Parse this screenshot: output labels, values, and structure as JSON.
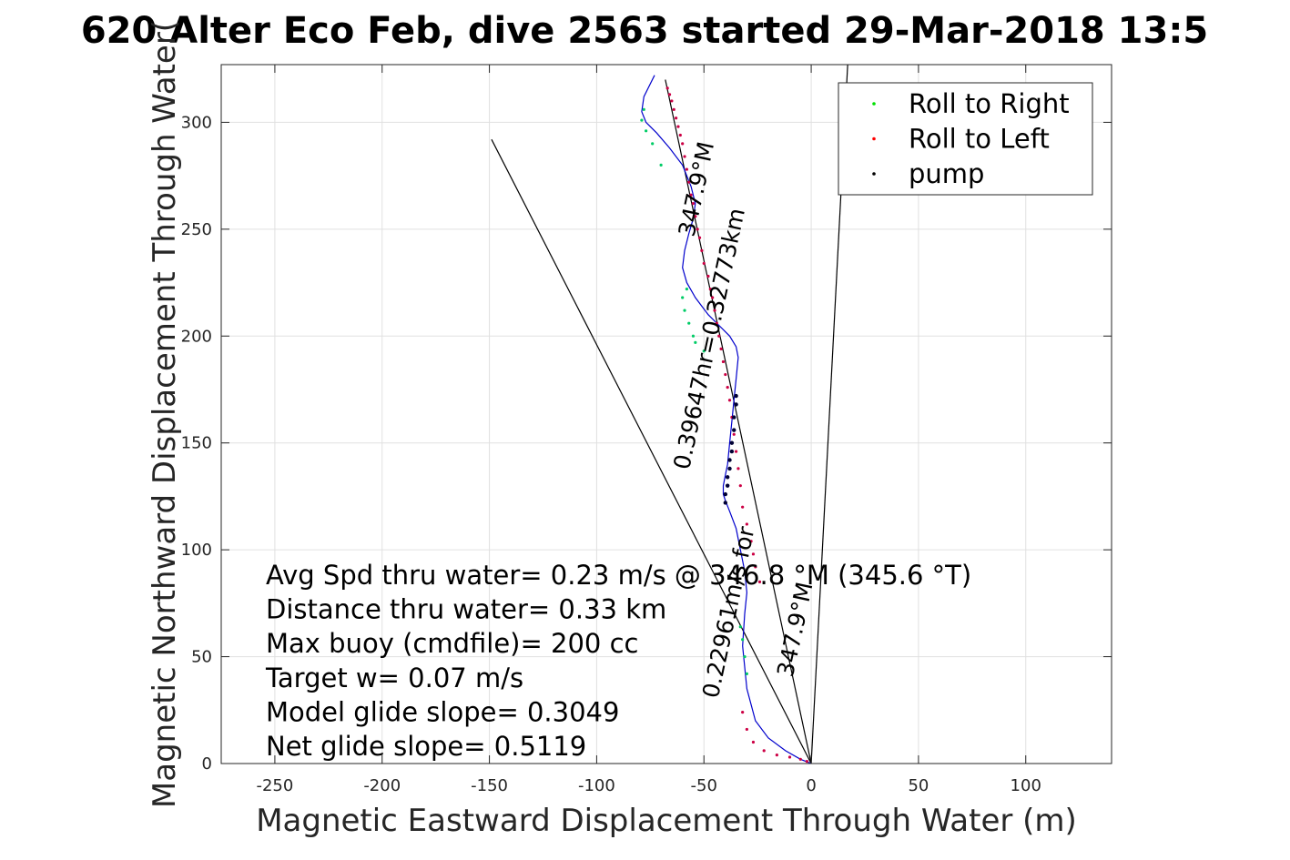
{
  "chart_data": {
    "type": "scatter",
    "title": "620 Alter Eco Feb, dive 2563 started 29-Mar-2018 13:5",
    "xlabel": "Magnetic Eastward Displacement Through Water (m)",
    "ylabel": "Magnetic Northward Displacement Through Water(",
    "xlim": [
      -275,
      140
    ],
    "ylim": [
      0,
      327
    ],
    "xticks": [
      -250,
      -200,
      -150,
      -100,
      -50,
      0,
      50,
      100
    ],
    "yticks": [
      0,
      50,
      100,
      150,
      200,
      250,
      300
    ],
    "grid": true,
    "legend_position": "top-right",
    "legend": [
      {
        "label": "Roll to Right",
        "color": "#00e000"
      },
      {
        "label": "Roll to Left",
        "color": "#ff0000"
      },
      {
        "label": "pump",
        "color": "#000000"
      }
    ],
    "track": {
      "color": "#0000cc",
      "x": [
        0,
        -5,
        -12,
        -20,
        -26,
        -30,
        -32,
        -31,
        -30,
        -31,
        -33,
        -35,
        -38,
        -40,
        -41,
        -41,
        -40,
        -39,
        -38,
        -37,
        -36,
        -35,
        -34,
        -35,
        -38,
        -43,
        -48,
        -54,
        -58,
        -60,
        -59,
        -57,
        -55,
        -54,
        -56,
        -60,
        -66,
        -72,
        -77,
        -79,
        -78,
        -75,
        -73
      ],
      "y": [
        0,
        2,
        6,
        12,
        20,
        35,
        55,
        70,
        80,
        90,
        100,
        110,
        118,
        123,
        126,
        130,
        135,
        140,
        150,
        160,
        170,
        180,
        190,
        195,
        200,
        205,
        210,
        218,
        225,
        232,
        240,
        248,
        255,
        262,
        270,
        280,
        288,
        295,
        300,
        305,
        312,
        318,
        322
      ]
    },
    "roll_right_points": {
      "x": [
        -30,
        -31,
        -32,
        -33,
        -55,
        -57,
        -59,
        -60,
        -58,
        -54,
        -50,
        -70,
        -74,
        -77,
        -79,
        -78
      ],
      "y": [
        42,
        50,
        58,
        64,
        200,
        206,
        212,
        218,
        222,
        197,
        193,
        280,
        290,
        296,
        301,
        306
      ]
    },
    "roll_left_points": {
      "x": [
        -32,
        -30,
        -27,
        -22,
        -16,
        -10,
        -5,
        -2,
        -24,
        -26,
        -27,
        -28,
        -30,
        -32,
        -33,
        -34,
        -35,
        -36,
        -37,
        -38,
        -39,
        -40,
        -41,
        -42,
        -43,
        -44,
        -45,
        -46,
        -47,
        -48,
        -50,
        -51,
        -52,
        -53,
        -54,
        -55,
        -56,
        -57,
        -58,
        -59,
        -60,
        -61,
        -62,
        -63,
        -64,
        -65,
        -66,
        -67
      ],
      "y": [
        24,
        16,
        10,
        6,
        4,
        3,
        2,
        1,
        85,
        92,
        98,
        104,
        112,
        120,
        130,
        138,
        146,
        154,
        162,
        170,
        176,
        182,
        188,
        194,
        200,
        206,
        212,
        218,
        222,
        228,
        234,
        240,
        246,
        250,
        256,
        262,
        266,
        272,
        278,
        284,
        290,
        294,
        298,
        302,
        306,
        310,
        313,
        316
      ]
    },
    "pump_points": {
      "x": [
        -40,
        -40,
        -39,
        -39,
        -38,
        -38,
        -37,
        -37,
        -36,
        -36,
        -35,
        -35
      ],
      "y": [
        122,
        126,
        130,
        134,
        138,
        142,
        146,
        150,
        156,
        162,
        168,
        172
      ]
    },
    "heading_lines": [
      {
        "x": [
          0,
          -68
        ],
        "y": [
          0,
          320
        ],
        "color": "#000000"
      },
      {
        "x": [
          0,
          -149
        ],
        "y": [
          0,
          292
        ],
        "color": "#000000"
      },
      {
        "x": [
          0,
          17
        ],
        "y": [
          0,
          327
        ],
        "color": "#000000"
      }
    ],
    "segment_labels": [
      {
        "text": "0.39647hr=0.32773km",
        "x": -44,
        "y": 198,
        "angle_deg": -77.9
      },
      {
        "text": "347.9°M",
        "x": -50,
        "y": 268,
        "angle_deg": -77.9
      },
      {
        "text": "0.22961m/s for",
        "x": -35,
        "y": 70,
        "angle_deg": -77.9
      },
      {
        "text": "347.9°M",
        "x": -4,
        "y": 62,
        "angle_deg": -77.9
      }
    ],
    "stats": [
      "Avg Spd thru water=  0.23 m/s @ 346.8 °M (345.6 °T)",
      "Distance thru water=  0.33 km",
      "Max buoy (cmdfile)= 200 cc",
      "Target w= 0.07 m/s",
      "Model glide slope= 0.3049",
      "Net glide slope= 0.5119"
    ]
  }
}
